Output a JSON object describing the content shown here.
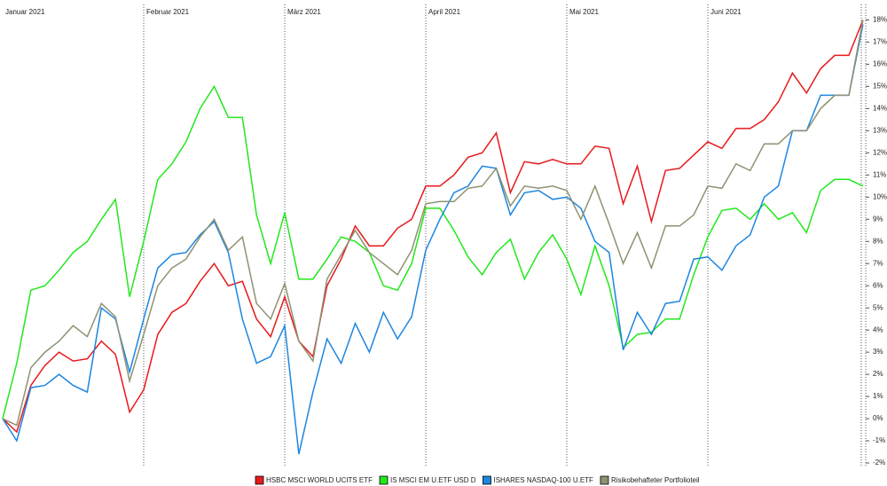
{
  "chart_data": {
    "type": "line",
    "categories": [
      "Januar 2021",
      null,
      null,
      null,
      null,
      null,
      null,
      null,
      null,
      null,
      "Februar 2021",
      null,
      null,
      null,
      null,
      null,
      null,
      null,
      null,
      null,
      "März 2021",
      null,
      null,
      null,
      null,
      null,
      null,
      null,
      null,
      null,
      "April 2021",
      null,
      null,
      null,
      null,
      null,
      null,
      null,
      null,
      null,
      "Mai 2021",
      null,
      null,
      null,
      null,
      null,
      null,
      null,
      null,
      null,
      "Juni 2021",
      null,
      null,
      null,
      null,
      null,
      null,
      null,
      null,
      null,
      null,
      null
    ],
    "series": [
      {
        "name": "HSBC MSCI WORLD UCITS ETF",
        "color": "#e8191c",
        "values": [
          0,
          -0.6,
          1.5,
          2.4,
          3.0,
          2.6,
          2.7,
          3.5,
          2.9,
          0.3,
          1.3,
          3.8,
          4.8,
          5.2,
          6.2,
          7.0,
          6.0,
          6.2,
          4.5,
          3.7,
          5.5,
          3.5,
          2.8,
          6.0,
          7.2,
          8.7,
          7.8,
          7.8,
          8.6,
          9.0,
          10.5,
          10.5,
          11.0,
          11.8,
          12.0,
          12.9,
          10.2,
          11.6,
          11.5,
          11.7,
          11.5,
          11.5,
          12.3,
          12.2,
          9.7,
          11.4,
          8.9,
          11.2,
          11.3,
          11.9,
          12.5,
          12.2,
          13.1,
          13.1,
          13.5,
          14.3,
          15.6,
          14.7,
          15.8,
          16.4,
          16.4,
          18.0
        ]
      },
      {
        "name": "IS MSCI EM U.ETF USD D",
        "color": "#22e81c",
        "values": [
          0,
          2.5,
          5.8,
          6.0,
          6.7,
          7.5,
          8.0,
          9.0,
          9.9,
          5.5,
          8.0,
          10.8,
          11.5,
          12.5,
          14.0,
          15.0,
          13.6,
          13.6,
          9.2,
          7.0,
          9.3,
          6.3,
          6.3,
          7.2,
          8.2,
          8.0,
          7.5,
          6.0,
          5.8,
          7.0,
          9.5,
          9.5,
          8.5,
          7.3,
          6.5,
          7.5,
          8.1,
          6.3,
          7.5,
          8.3,
          7.2,
          5.6,
          7.8,
          6.0,
          3.2,
          3.8,
          3.9,
          4.5,
          4.5,
          6.5,
          8.2,
          9.4,
          9.5,
          9.0,
          9.7,
          9.0,
          9.3,
          8.4,
          10.3,
          10.8,
          10.8,
          10.5
        ]
      },
      {
        "name": "ISHARES NASDAQ-100 U.ETF",
        "color": "#1c86e0",
        "values": [
          0,
          -1.0,
          1.4,
          1.5,
          2.0,
          1.5,
          1.2,
          5.0,
          4.5,
          2.1,
          4.5,
          6.8,
          7.4,
          7.5,
          8.3,
          8.9,
          7.5,
          4.5,
          2.5,
          2.8,
          4.2,
          -1.6,
          1.2,
          3.6,
          2.5,
          4.3,
          3.0,
          4.8,
          3.6,
          4.6,
          7.6,
          9.0,
          10.2,
          10.5,
          11.4,
          11.3,
          9.2,
          10.2,
          10.3,
          9.9,
          10.0,
          9.5,
          8.0,
          7.5,
          3.1,
          4.8,
          3.8,
          5.2,
          5.3,
          7.2,
          7.3,
          6.7,
          7.8,
          8.3,
          10.0,
          10.5,
          13.0,
          13.0,
          14.6,
          14.6,
          14.6,
          17.8
        ]
      },
      {
        "name": "Risikobehafteter Portfolioteil",
        "color": "#8f9272",
        "values": [
          0,
          -0.3,
          2.3,
          3.0,
          3.5,
          4.2,
          3.7,
          5.2,
          4.6,
          1.7,
          3.8,
          6.0,
          6.8,
          7.2,
          8.2,
          9.0,
          7.6,
          8.2,
          5.2,
          4.5,
          6.1,
          3.5,
          2.6,
          6.3,
          7.4,
          8.5,
          7.5,
          7.0,
          6.5,
          7.6,
          9.7,
          9.8,
          9.8,
          10.4,
          10.5,
          11.3,
          9.6,
          10.5,
          10.4,
          10.5,
          10.3,
          9.0,
          10.5,
          8.8,
          7.0,
          8.4,
          6.8,
          8.7,
          8.7,
          9.2,
          10.5,
          10.4,
          11.5,
          11.2,
          12.4,
          12.4,
          13.0,
          13.0,
          14.0,
          14.6,
          14.6,
          18.0
        ]
      }
    ],
    "ylim": [
      -2.2,
      18.7
    ],
    "yticks": [
      {
        "value": -2,
        "label": "-2%"
      },
      {
        "value": -1,
        "label": "-1%"
      },
      {
        "value": 0,
        "label": "0%"
      },
      {
        "value": 1,
        "label": "1%"
      },
      {
        "value": 2,
        "label": "2%"
      },
      {
        "value": 3,
        "label": "3%"
      },
      {
        "value": 4,
        "label": "4%"
      },
      {
        "value": 5,
        "label": "5%"
      },
      {
        "value": 6,
        "label": "6%"
      },
      {
        "value": 7,
        "label": "7%"
      },
      {
        "value": 8,
        "label": "8%"
      },
      {
        "value": 9,
        "label": "9%"
      },
      {
        "value": 10,
        "label": "10%"
      },
      {
        "value": 11,
        "label": "11%"
      },
      {
        "value": 12,
        "label": "12%"
      },
      {
        "value": 13,
        "label": "13%"
      },
      {
        "value": 14,
        "label": "14%"
      },
      {
        "value": 15,
        "label": "15%"
      },
      {
        "value": 16,
        "label": "16%"
      },
      {
        "value": 17,
        "label": "17%"
      },
      {
        "value": 18,
        "label": "18%"
      }
    ],
    "grid": false
  }
}
